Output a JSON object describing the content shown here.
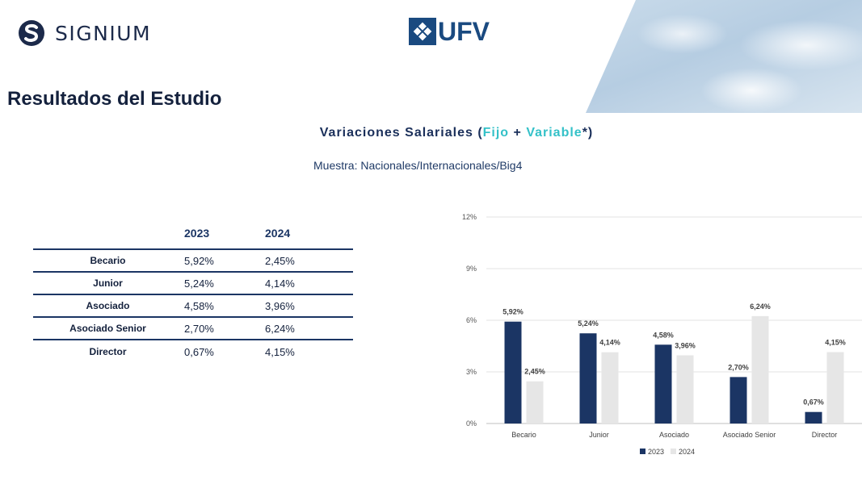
{
  "header": {
    "brand_left": "SIGNIUM",
    "brand_center": "UFV",
    "brand_left_color": "#1c2a4a",
    "brand_center_color": "#1a4a80"
  },
  "section_title": "Resultados del Estudio",
  "subtitle": {
    "pre": "Variaciones Salariales (",
    "fijo": "Fijo",
    "plus": " + ",
    "variable": "Variable",
    "post": "*)",
    "accent_color": "#34c1c8"
  },
  "sample": "Muestra: Nacionales/Internacionales/Big4",
  "table": {
    "headers": [
      "2023",
      "2024"
    ],
    "rows": [
      {
        "label": "Becario",
        "v2023": "5,92%",
        "v2024": "2,45%"
      },
      {
        "label": "Junior",
        "v2023": "5,24%",
        "v2024": "4,14%"
      },
      {
        "label": "Asociado",
        "v2023": "4,58%",
        "v2024": "3,96%"
      },
      {
        "label": "Asociado Senior",
        "v2023": "2,70%",
        "v2024": "6,24%"
      },
      {
        "label": "Director",
        "v2023": "0,67%",
        "v2024": "4,15%"
      }
    ]
  },
  "chart_data": {
    "type": "bar",
    "categories": [
      "Becario",
      "Junior",
      "Asociado",
      "Asociado Senior",
      "Director"
    ],
    "series": [
      {
        "name": "2023",
        "values": [
          5.92,
          5.24,
          4.58,
          2.7,
          0.67
        ],
        "labels": [
          "5,92%",
          "5,24%",
          "4,58%",
          "2,70%",
          "0,67%"
        ],
        "color": "#1b3564"
      },
      {
        "name": "2024",
        "values": [
          2.45,
          4.14,
          3.96,
          6.24,
          4.15
        ],
        "labels": [
          "2,45%",
          "4,14%",
          "3,96%",
          "6,24%",
          "4,15%"
        ],
        "color": "#e6e6e6"
      }
    ],
    "yticks": [
      0,
      3,
      6,
      9,
      12
    ],
    "ytick_labels": [
      "0%",
      "3%",
      "6%",
      "9%",
      "12%"
    ],
    "ylim": [
      0,
      12
    ],
    "grid": true,
    "legend": "bottom-center"
  }
}
